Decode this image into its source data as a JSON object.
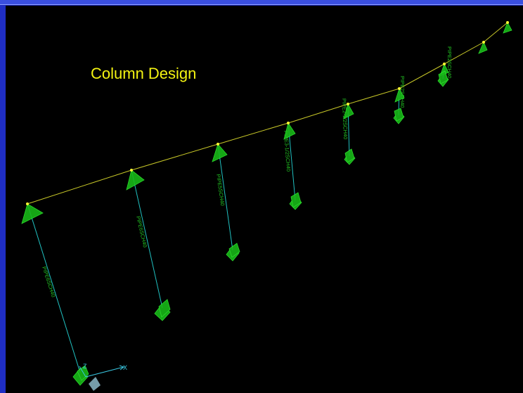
{
  "view": {
    "title": "Column Design"
  },
  "members": [
    {
      "section": "PIPE6SCH40"
    },
    {
      "section": "PIPE6SCH40"
    },
    {
      "section": "PIPE5SCH40"
    },
    {
      "section": "PIPE3-1/2SCH40"
    },
    {
      "section": "PIPE2-1/2SCH40"
    },
    {
      "section": "PIPE2SCH40"
    },
    {
      "section": "PIPE2SCH40"
    }
  ],
  "axes": {
    "x_label": "X",
    "z_label": "Z"
  },
  "colors": {
    "background": "#000000",
    "window_border": "#1f2ec4",
    "title": "#f3f312",
    "girder": "#c8c828",
    "column": "#20c0c0",
    "support": "#20d020",
    "section_label": "#22c322"
  }
}
